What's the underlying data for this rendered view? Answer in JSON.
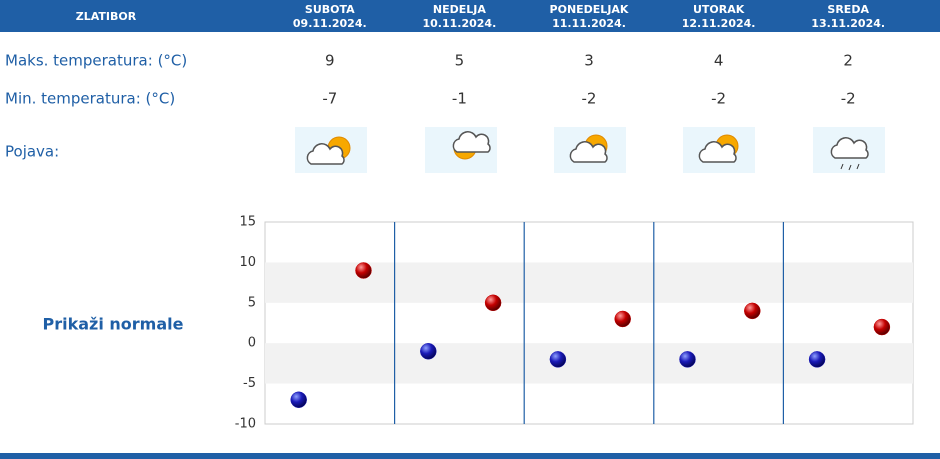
{
  "header": {
    "location": "ZLATIBOR"
  },
  "rows": {
    "max_label": "Maks. temperatura: (°C)",
    "min_label": "Min. temperatura: (°C)",
    "icon_label": "Pojava:"
  },
  "days": [
    {
      "name": "SUBOTA",
      "date": "09.11.2024.",
      "max": 9,
      "min": -7
    },
    {
      "name": "NEDELJA",
      "date": "10.11.2024.",
      "max": 5,
      "min": -1
    },
    {
      "name": "PONEDELJAK",
      "date": "11.11.2024.",
      "max": 3,
      "min": -2
    },
    {
      "name": "UTORAK",
      "date": "12.11.2024.",
      "max": 4,
      "min": -2
    },
    {
      "name": "SREDA",
      "date": "13.11.2024.",
      "max": 2,
      "min": -2
    }
  ],
  "link": "Prikaži normale",
  "chart_data": {
    "type": "scatter",
    "ylim": [
      -10,
      15
    ],
    "yticks": [
      -10,
      -5,
      0,
      5,
      10,
      15
    ],
    "min_color": "#1a1ab8",
    "max_color": "#c40000",
    "grid": true
  }
}
